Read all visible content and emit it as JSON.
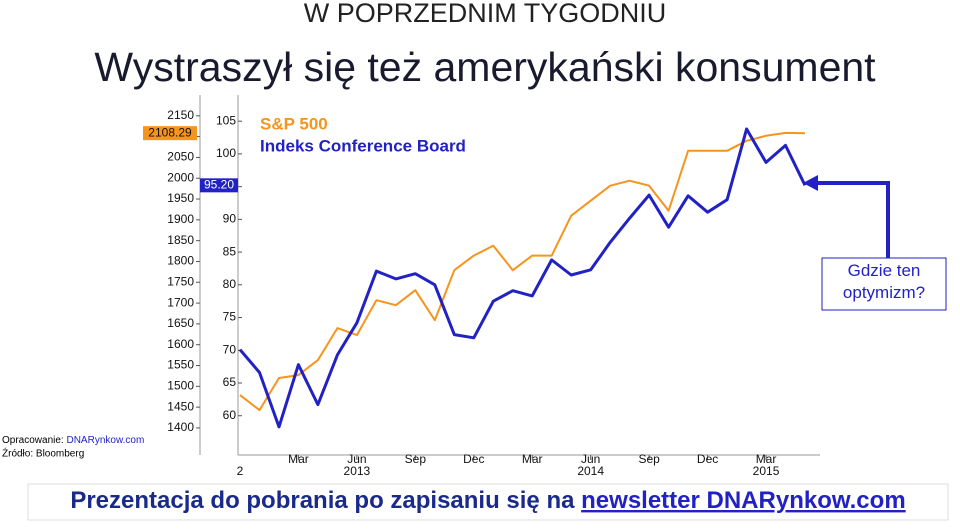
{
  "header": "W POPRZEDNIM TYGODNIU",
  "title": "Wystraszył się też amerykański konsument",
  "chart_data": {
    "type": "line",
    "x": [
      "2012-12",
      "2013-01",
      "2013-02",
      "2013-03",
      "2013-04",
      "2013-05",
      "2013-06",
      "2013-07",
      "2013-08",
      "2013-09",
      "2013-10",
      "2013-11",
      "2013-12",
      "2014-01",
      "2014-02",
      "2014-03",
      "2014-04",
      "2014-05",
      "2014-06",
      "2014-07",
      "2014-08",
      "2014-09",
      "2014-10",
      "2014-11",
      "2014-12",
      "2015-01",
      "2015-02",
      "2015-03",
      "2015-04",
      "2015-05"
    ],
    "series": [
      {
        "name": "S&P 500",
        "color": "#f7941d",
        "end_label": "2108.29",
        "values": [
          1479,
          1443,
          1520,
          1527,
          1563,
          1640,
          1623,
          1707,
          1695,
          1731,
          1659,
          1779,
          1814,
          1838,
          1779,
          1814,
          1814,
          1910,
          1946,
          1982,
          1994,
          1982,
          1922,
          2066,
          2066,
          2066,
          2090,
          2102,
          2109,
          2108.29
        ]
      },
      {
        "name": "Indeks Conference Board",
        "color": "#2222c4",
        "axis": "y2",
        "end_label": "95.20",
        "values": [
          70.1,
          66.6,
          58.3,
          67.8,
          61.7,
          69.3,
          74.2,
          82.1,
          80.9,
          81.7,
          80.0,
          72.4,
          71.9,
          77.5,
          79.1,
          78.3,
          83.8,
          81.5,
          82.3,
          86.5,
          90.2,
          93.7,
          88.8,
          93.6,
          91.1,
          93.0,
          103.8,
          98.7,
          101.3,
          95.2
        ]
      }
    ],
    "ylim": [
      1335,
      2200
    ],
    "yticks": [
      1400,
      1450,
      1500,
      1550,
      1600,
      1650,
      1700,
      1750,
      1800,
      1850,
      1900,
      1950,
      2000,
      2050,
      2100,
      2150
    ],
    "y2lim": [
      54,
      109
    ],
    "y2ticks": [
      60,
      65,
      70,
      75,
      80,
      85,
      90,
      95,
      100,
      105
    ],
    "xticks": [
      {
        "value": "2013-03",
        "label": "Mar"
      },
      {
        "value": "2013-06",
        "label": "Jun"
      },
      {
        "value": "2013-09",
        "label": "Sep"
      },
      {
        "value": "2013-12",
        "label": "Dec"
      },
      {
        "value": "2014-03",
        "label": "Mar"
      },
      {
        "value": "2014-06",
        "label": "Jun"
      },
      {
        "value": "2014-09",
        "label": "Sep"
      },
      {
        "value": "2014-12",
        "label": "Dec"
      },
      {
        "value": "2015-03",
        "label": "Mar"
      }
    ],
    "x_year_labels": [
      {
        "value": "2012-12",
        "label": "2"
      },
      {
        "value": "2013-06",
        "label": "2013"
      },
      {
        "value": "2014-06",
        "label": "2014"
      },
      {
        "value": "2015-03",
        "label": "2015"
      }
    ],
    "annotation": "Gdzie ten optymizm?"
  },
  "source": {
    "prefix": "Opracowanie:",
    "link": "DNARynkow.com",
    "origin": "Źródło: Bloomberg"
  },
  "footer": {
    "text": "Prezentacja do pobrania po zapisaniu się na",
    "link": "newsletter DNARynkow.com"
  }
}
